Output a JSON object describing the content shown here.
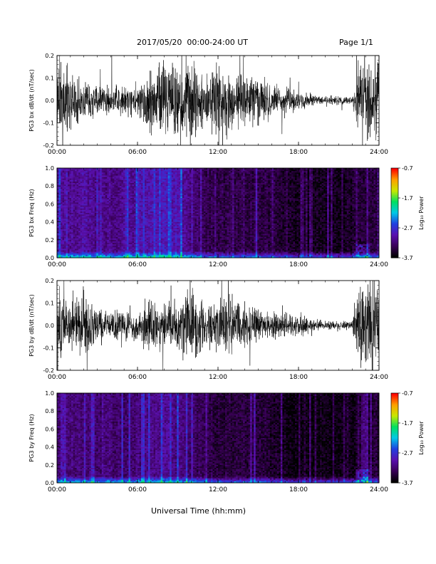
{
  "header": {
    "title": "2017/05/20  00:00-24:00 UT",
    "page": "Page 1/1"
  },
  "xaxis_title": "Universal Time (hh:mm)",
  "time_ticks": [
    "00:00",
    "06:00",
    "12:00",
    "18:00",
    "24:00"
  ],
  "colorbar": {
    "label": "Log₁₀ Power",
    "ticks": [
      "-0.7",
      "-1.7",
      "-2.7",
      "-3.7"
    ],
    "colors": [
      "#000000",
      "#3a0058",
      "#5a10b0",
      "#2040e0",
      "#00c8e8",
      "#00e060",
      "#c8e800",
      "#ffa000",
      "#ff0000"
    ]
  },
  "chart_data": [
    {
      "type": "line",
      "panel": "PG3 bx dB/dt",
      "ylabel": "PG3 bx dB/dt (nT/sec)",
      "xlim": [
        0,
        24
      ],
      "ylim": [
        -0.2,
        0.2
      ],
      "yticks": [
        "0.2",
        "0.1",
        "0.0",
        "-0.1",
        "-0.2"
      ],
      "series": [
        {
          "x": [
            0,
            1,
            2,
            3,
            4,
            5,
            6,
            7,
            8,
            9,
            10,
            11,
            12,
            13,
            14,
            15,
            16,
            17,
            18,
            19,
            20,
            21,
            22,
            22.5,
            23,
            23.5,
            24
          ],
          "amplitude": [
            0.2,
            0.12,
            0.1,
            0.08,
            0.07,
            0.07,
            0.09,
            0.15,
            0.2,
            0.18,
            0.2,
            0.12,
            0.2,
            0.15,
            0.11,
            0.12,
            0.08,
            0.07,
            0.05,
            0.03,
            0.02,
            0.02,
            0.02,
            0.2,
            0.2,
            0.2,
            0.2
          ]
        }
      ]
    },
    {
      "type": "heatmap",
      "panel": "PG3 bx Freq",
      "ylabel": "PG3 bx Freq (Hz)",
      "xlim": [
        0,
        24
      ],
      "ylim": [
        0,
        1
      ],
      "yticks": [
        "1.0",
        "0.8",
        "0.6",
        "0.4",
        "0.2",
        "0.0"
      ],
      "zlim": [
        -3.7,
        -0.7
      ],
      "hours": [
        0,
        1,
        2,
        3,
        4,
        5,
        6,
        7,
        8,
        9,
        10,
        11,
        12,
        13,
        14,
        15,
        16,
        17,
        18,
        19,
        20,
        21,
        22,
        23,
        24
      ],
      "background_log_power": [
        -3.1,
        -3.15,
        -3.1,
        -3.15,
        -3.2,
        -3.15,
        -3.1,
        -3.0,
        -2.95,
        -3.0,
        -3.2,
        -3.4,
        -3.45,
        -3.45,
        -3.45,
        -3.45,
        -3.5,
        -3.6,
        -3.65,
        -3.65,
        -3.65,
        -3.65,
        -3.6,
        -3.5,
        -3.5
      ]
    },
    {
      "type": "line",
      "panel": "PG3 by dB/dt",
      "ylabel": "PG3 by dB/dt (nT/sec)",
      "xlim": [
        0,
        24
      ],
      "ylim": [
        -0.2,
        0.2
      ],
      "yticks": [
        "0.2",
        "0.1",
        "0.0",
        "-0.1",
        "-0.2"
      ],
      "series": [
        {
          "x": [
            0,
            1,
            2,
            3,
            4,
            5,
            6,
            7,
            8,
            9,
            10,
            11,
            12,
            13,
            14,
            15,
            16,
            17,
            18,
            19,
            20,
            21,
            22,
            22.5,
            23,
            23.5,
            24
          ],
          "amplitude": [
            0.2,
            0.1,
            0.2,
            0.08,
            0.07,
            0.08,
            0.07,
            0.15,
            0.1,
            0.12,
            0.2,
            0.1,
            0.12,
            0.13,
            0.12,
            0.08,
            0.06,
            0.06,
            0.05,
            0.03,
            0.02,
            0.02,
            0.02,
            0.2,
            0.2,
            0.2,
            0.2
          ]
        }
      ]
    },
    {
      "type": "heatmap",
      "panel": "PG3 by Freq",
      "ylabel": "PG3 by Freq (Hz)",
      "xlim": [
        0,
        24
      ],
      "ylim": [
        0,
        1
      ],
      "yticks": [
        "1.0",
        "0.8",
        "0.6",
        "0.4",
        "0.2",
        "0.0"
      ],
      "zlim": [
        -3.7,
        -0.7
      ],
      "hours": [
        0,
        1,
        2,
        3,
        4,
        5,
        6,
        7,
        8,
        9,
        10,
        11,
        12,
        13,
        14,
        15,
        16,
        17,
        18,
        19,
        20,
        21,
        22,
        23,
        24
      ],
      "background_log_power": [
        -3.2,
        -3.25,
        -3.25,
        -3.3,
        -3.3,
        -3.3,
        -3.25,
        -3.2,
        -3.15,
        -3.2,
        -3.3,
        -3.45,
        -3.5,
        -3.5,
        -3.5,
        -3.5,
        -3.55,
        -3.65,
        -3.7,
        -3.7,
        -3.7,
        -3.7,
        -3.65,
        -3.55,
        -3.55
      ]
    }
  ]
}
